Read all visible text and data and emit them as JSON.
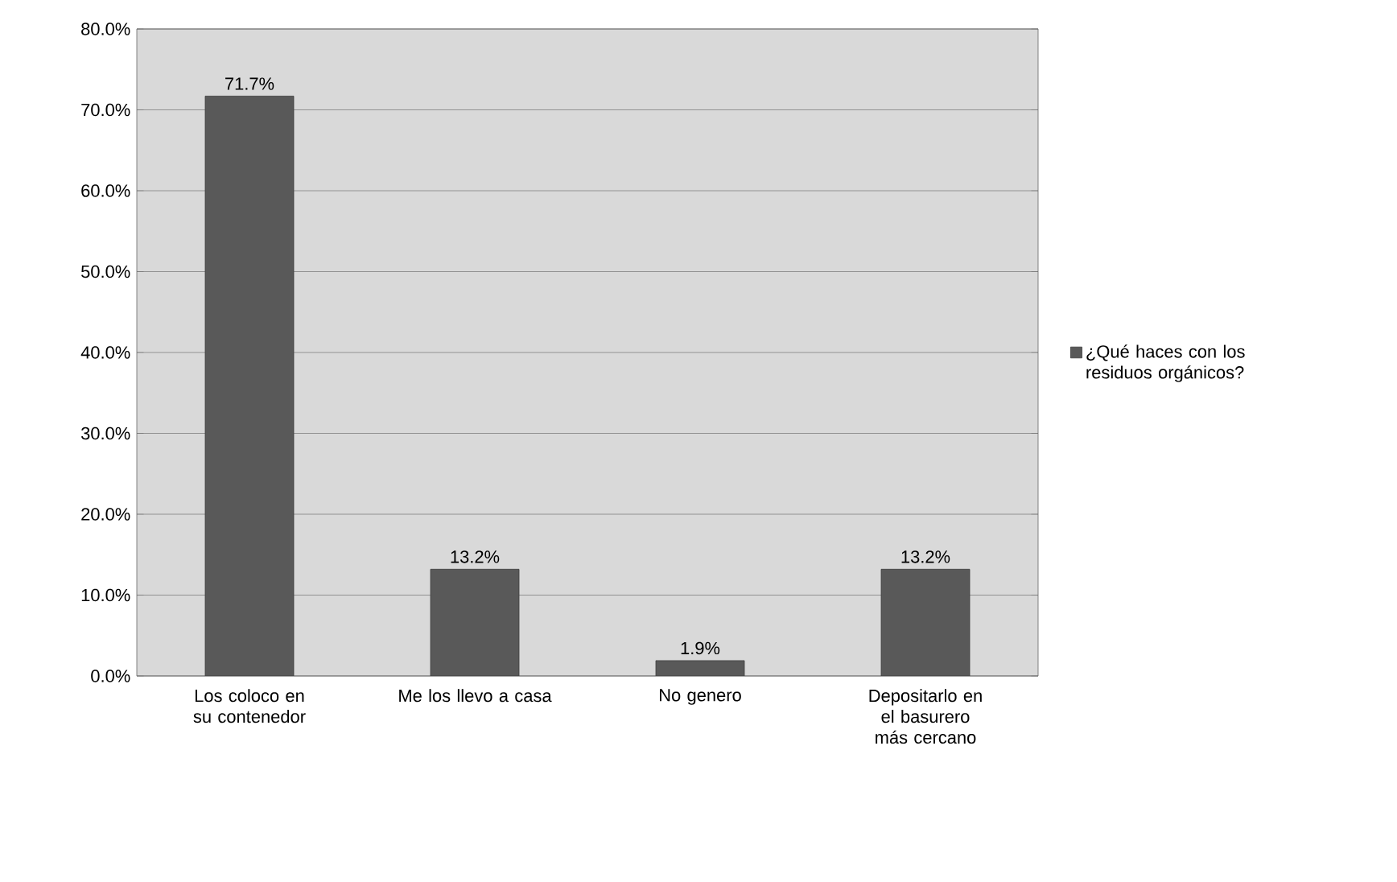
{
  "chart_data": {
    "type": "bar",
    "categories": [
      "Los coloco en su contenedor",
      "Me los llevo a casa",
      "No genero",
      "Depositarlo en el basurero más cercano"
    ],
    "series": [
      {
        "name": "¿Qué haces con los residuos orgánicos?",
        "color": "#595959",
        "values": [
          71.7,
          13.2,
          1.9,
          13.2
        ],
        "value_labels": [
          "71.7%",
          "13.2%",
          "1.9%",
          "13.2%"
        ]
      }
    ],
    "ylim": [
      0,
      80
    ],
    "yticks": [
      {
        "value": 0,
        "label": "0.0%"
      },
      {
        "value": 10,
        "label": "10.0%"
      },
      {
        "value": 20,
        "label": "20.0%"
      },
      {
        "value": 30,
        "label": "30.0%"
      },
      {
        "value": 40,
        "label": "40.0%"
      },
      {
        "value": 50,
        "label": "50.0%"
      },
      {
        "value": 60,
        "label": "60.0%"
      },
      {
        "value": 70,
        "label": "70.0%"
      },
      {
        "value": 80,
        "label": "80.0%"
      }
    ],
    "grid": "y",
    "legend": "right"
  }
}
